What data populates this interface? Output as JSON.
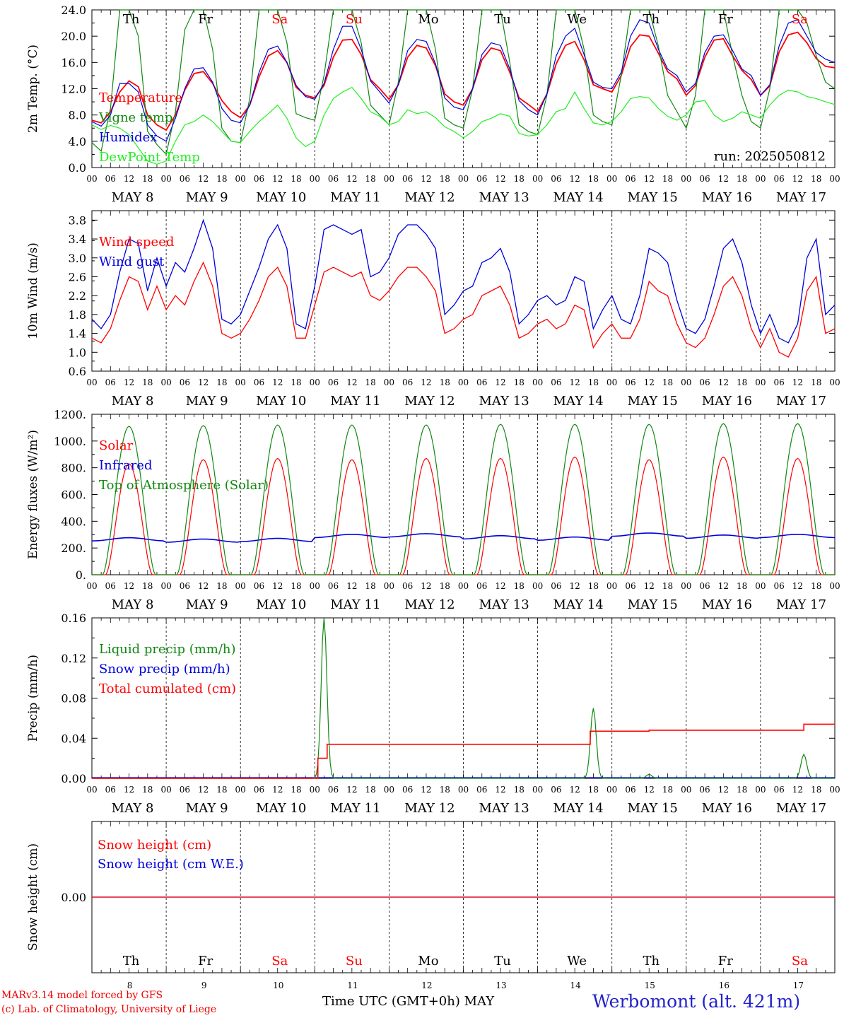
{
  "run_label": "run: 2025050812",
  "days": [
    {
      "abbr": "Th",
      "date": "MAY  8",
      "num": "8",
      "weekend": false
    },
    {
      "abbr": "Fr",
      "date": "MAY  9",
      "num": "9",
      "weekend": false
    },
    {
      "abbr": "Sa",
      "date": "MAY 10",
      "num": "10",
      "weekend": true
    },
    {
      "abbr": "Su",
      "date": "MAY 11",
      "num": "11",
      "weekend": true
    },
    {
      "abbr": "Mo",
      "date": "MAY 12",
      "num": "12",
      "weekend": false
    },
    {
      "abbr": "Tu",
      "date": "MAY 13",
      "num": "13",
      "weekend": false
    },
    {
      "abbr": "We",
      "date": "MAY 14",
      "num": "14",
      "weekend": false
    },
    {
      "abbr": "Th",
      "date": "MAY 15",
      "num": "15",
      "weekend": false
    },
    {
      "abbr": "Fr",
      "date": "MAY 16",
      "num": "16",
      "weekend": false
    },
    {
      "abbr": "Sa",
      "date": "MAY 17",
      "num": "17",
      "weekend": true
    }
  ],
  "hour_ticks": [
    "00",
    "06",
    "12",
    "18"
  ],
  "colors": {
    "red": "#ff0000",
    "green": "#118811",
    "blue": "#0000dd",
    "lightgreen": "#22ee22",
    "weekend": "#ff0000"
  },
  "footer": {
    "credit1": "MARv3.14 model forced by GFS",
    "credit2": "(c) Lab. of Climatology, University of Liege",
    "xtitle": "Time UTC (GMT+0h) MAY",
    "station": "Werbomont (alt. 421m)"
  },
  "chart_data": [
    {
      "type": "line",
      "ylabel": "2m Temp. (°C)",
      "ylim": [
        0,
        24
      ],
      "yticks": [
        "0.0",
        "4.0",
        "8.0",
        "12.0",
        "16.0",
        "20.0",
        "24.0"
      ],
      "x_unit": "hours since MAY 8 00 UTC (3-hourly)",
      "x": [
        0,
        3,
        6,
        9,
        12,
        15,
        18,
        21,
        24,
        27,
        30,
        33,
        36,
        39,
        42,
        45,
        48,
        51,
        54,
        57,
        60,
        63,
        66,
        69,
        72,
        75,
        78,
        81,
        84,
        87,
        90,
        93,
        96,
        99,
        102,
        105,
        108,
        111,
        114,
        117,
        120,
        123,
        126,
        129,
        132,
        135,
        138,
        141,
        144,
        147,
        150,
        153,
        156,
        159,
        162,
        165,
        168,
        171,
        174,
        177,
        180,
        183,
        186,
        189,
        192,
        195,
        198,
        201,
        204,
        207,
        210,
        213,
        216,
        219,
        222,
        225,
        228,
        231,
        234,
        237,
        240
      ],
      "series": [
        {
          "name": "Temperature",
          "color": "red",
          "values": [
            7.2,
            6.8,
            8.5,
            11.5,
            13.2,
            12.3,
            8.0,
            6.5,
            5.7,
            8.0,
            11.8,
            14.3,
            14.6,
            12.8,
            10.2,
            8.5,
            7.6,
            9.5,
            13.8,
            17.0,
            17.8,
            16.0,
            12.2,
            11.0,
            10.6,
            12.5,
            16.8,
            19.4,
            19.5,
            17.2,
            13.4,
            12.0,
            10.4,
            12.6,
            16.8,
            18.6,
            18.2,
            15.5,
            11.2,
            10.0,
            9.5,
            12.0,
            16.4,
            18.2,
            17.8,
            14.5,
            10.6,
            9.6,
            8.5,
            11.2,
            15.8,
            18.6,
            19.2,
            16.4,
            12.6,
            12.0,
            11.5,
            14.0,
            18.4,
            20.2,
            20.0,
            17.4,
            14.6,
            13.5,
            11.0,
            12.5,
            16.8,
            19.4,
            19.6,
            17.0,
            14.8,
            13.4,
            11.0,
            12.4,
            17.6,
            20.2,
            20.6,
            19.0,
            16.6,
            15.4,
            15.2
          ]
        },
        {
          "name": "Vigne temp",
          "color": "green",
          "values": [
            3.8,
            2.5,
            9.0,
            24.0,
            24.0,
            20.0,
            5.5,
            3.5,
            2.0,
            8.5,
            21.0,
            24.0,
            24.0,
            18.0,
            6.0,
            4.0,
            3.8,
            10.5,
            24.0,
            24.0,
            24.0,
            19.0,
            8.2,
            7.6,
            7.2,
            14.0,
            24.0,
            24.0,
            24.0,
            19.0,
            9.5,
            8.0,
            6.5,
            13.0,
            24.0,
            24.0,
            24.0,
            18.0,
            7.5,
            6.5,
            6.0,
            12.0,
            24.0,
            24.0,
            24.0,
            16.0,
            6.5,
            5.5,
            5.0,
            11.0,
            24.0,
            24.0,
            24.0,
            18.0,
            8.0,
            7.0,
            6.5,
            14.0,
            24.0,
            24.0,
            24.0,
            18.5,
            11.0,
            8.5,
            6.0,
            11.0,
            24.0,
            24.0,
            24.0,
            17.0,
            11.0,
            7.0,
            6.0,
            12.0,
            24.0,
            24.0,
            24.0,
            22.0,
            17.0,
            13.0,
            12.0
          ]
        },
        {
          "name": "Humidex",
          "color": "blue",
          "values": [
            7.0,
            6.3,
            8.0,
            12.8,
            12.8,
            11.5,
            6.5,
            4.8,
            4.0,
            7.5,
            12.0,
            15.0,
            15.2,
            13.0,
            9.0,
            7.2,
            6.8,
            9.5,
            14.5,
            18.0,
            18.5,
            16.0,
            12.5,
            10.8,
            10.4,
            12.8,
            18.0,
            21.5,
            21.5,
            18.0,
            13.2,
            11.5,
            9.8,
            12.6,
            17.8,
            19.5,
            19.2,
            15.8,
            10.6,
            9.2,
            8.8,
            12.0,
            17.2,
            19.0,
            18.6,
            15.0,
            10.2,
            8.8,
            8.0,
            11.2,
            17.0,
            20.0,
            21.2,
            17.2,
            13.0,
            12.2,
            12.0,
            14.5,
            20.0,
            22.5,
            22.0,
            18.0,
            15.0,
            14.0,
            11.5,
            12.8,
            17.5,
            20.0,
            20.2,
            17.8,
            15.0,
            14.0,
            11.0,
            12.6,
            18.5,
            22.0,
            22.5,
            20.0,
            17.5,
            16.5,
            16.0
          ]
        },
        {
          "name": "DewPoint Temp",
          "color": "lightgreen",
          "values": [
            6.5,
            5.8,
            6.4,
            6.0,
            5.0,
            3.0,
            1.0,
            0.5,
            1.0,
            4.0,
            6.5,
            7.0,
            8.0,
            7.0,
            5.5,
            4.0,
            3.8,
            5.5,
            7.0,
            8.2,
            9.5,
            7.5,
            4.5,
            3.2,
            4.0,
            8.0,
            10.5,
            11.5,
            12.2,
            10.5,
            8.5,
            7.8,
            6.5,
            7.0,
            8.8,
            8.2,
            8.5,
            7.6,
            6.2,
            5.5,
            4.5,
            5.5,
            7.0,
            7.5,
            8.2,
            7.8,
            5.2,
            4.8,
            5.0,
            6.5,
            8.5,
            9.0,
            11.5,
            9.0,
            6.8,
            6.5,
            7.0,
            8.5,
            10.5,
            10.8,
            10.6,
            9.0,
            7.8,
            7.2,
            8.0,
            10.0,
            10.2,
            8.0,
            7.0,
            7.5,
            8.5,
            8.0,
            7.5,
            9.5,
            11.0,
            11.8,
            11.5,
            10.8,
            10.5,
            10.0,
            9.6
          ]
        }
      ]
    },
    {
      "type": "line",
      "ylabel": "10m Wind (m/s)",
      "ylim": [
        0.6,
        4.0
      ],
      "yticks": [
        "0.6",
        "1.0",
        "1.4",
        "1.8",
        "2.2",
        "2.6",
        "3.0",
        "3.4",
        "3.8"
      ],
      "x_unit": "hours since MAY 8 00 UTC (3-hourly)",
      "x": [
        0,
        3,
        6,
        9,
        12,
        15,
        18,
        21,
        24,
        27,
        30,
        33,
        36,
        39,
        42,
        45,
        48,
        51,
        54,
        57,
        60,
        63,
        66,
        69,
        72,
        75,
        78,
        81,
        84,
        87,
        90,
        93,
        96,
        99,
        102,
        105,
        108,
        111,
        114,
        117,
        120,
        123,
        126,
        129,
        132,
        135,
        138,
        141,
        144,
        147,
        150,
        153,
        156,
        159,
        162,
        165,
        168,
        171,
        174,
        177,
        180,
        183,
        186,
        189,
        192,
        195,
        198,
        201,
        204,
        207,
        210,
        213,
        216,
        219,
        222,
        225,
        228,
        231,
        234,
        237,
        240
      ],
      "series": [
        {
          "name": "Wind speed",
          "color": "red",
          "values": [
            1.3,
            1.2,
            1.5,
            2.1,
            2.6,
            2.5,
            1.9,
            2.4,
            1.9,
            2.2,
            2.0,
            2.5,
            2.9,
            2.4,
            1.4,
            1.3,
            1.4,
            1.7,
            2.1,
            2.6,
            2.8,
            2.4,
            1.3,
            1.3,
            2.0,
            2.7,
            2.8,
            2.7,
            2.6,
            2.7,
            2.2,
            2.1,
            2.3,
            2.6,
            2.8,
            2.8,
            2.6,
            2.3,
            1.4,
            1.5,
            1.7,
            1.8,
            2.2,
            2.3,
            2.4,
            2.0,
            1.3,
            1.4,
            1.6,
            1.7,
            1.5,
            1.6,
            2.0,
            1.9,
            1.1,
            1.4,
            1.6,
            1.3,
            1.3,
            1.7,
            2.5,
            2.3,
            2.2,
            1.6,
            1.2,
            1.1,
            1.3,
            1.8,
            2.4,
            2.6,
            2.2,
            1.5,
            1.1,
            1.5,
            1.0,
            0.9,
            1.3,
            2.3,
            2.6,
            1.4,
            1.5
          ]
        },
        {
          "name": "Wind gust",
          "color": "blue",
          "values": [
            1.7,
            1.5,
            1.8,
            2.7,
            3.4,
            3.3,
            2.3,
            3.0,
            2.4,
            2.9,
            2.7,
            3.2,
            3.8,
            3.2,
            1.7,
            1.6,
            1.8,
            2.3,
            2.8,
            3.4,
            3.7,
            3.2,
            1.6,
            1.5,
            2.4,
            3.6,
            3.7,
            3.6,
            3.5,
            3.6,
            2.6,
            2.7,
            3.0,
            3.5,
            3.7,
            3.7,
            3.5,
            3.2,
            1.8,
            2.0,
            2.3,
            2.4,
            2.9,
            3.0,
            3.2,
            2.7,
            1.6,
            1.8,
            2.1,
            2.2,
            2.0,
            2.1,
            2.6,
            2.5,
            1.5,
            1.9,
            2.2,
            1.7,
            1.6,
            2.2,
            3.2,
            3.1,
            2.9,
            2.1,
            1.5,
            1.4,
            1.7,
            2.4,
            3.2,
            3.4,
            2.9,
            2.0,
            1.4,
            1.8,
            1.3,
            1.2,
            1.6,
            3.0,
            3.4,
            1.8,
            2.0
          ]
        }
      ]
    },
    {
      "type": "line",
      "ylabel": "Energy fluxes (W/m²)",
      "ylim": [
        0,
        1200
      ],
      "yticks": [
        "0.",
        "200.",
        "400.",
        "600.",
        "800.",
        "1000.",
        "1200."
      ],
      "x_unit": "hours since MAY 8 00 UTC (daily cycle)",
      "series": [
        {
          "name": "Solar",
          "color": "red",
          "daily_peak": [
            830,
            860,
            870,
            860,
            870,
            870,
            880,
            860,
            880,
            870
          ],
          "sunrise_h": 4.5,
          "sunset_h": 19.5
        },
        {
          "name": "Infrared",
          "color": "blue",
          "baseline": [
            265,
            255,
            260,
            290,
            295,
            280,
            270,
            300,
            285,
            290
          ],
          "note": "near-constant ~250-310"
        },
        {
          "name": "Top of Atmosphere (Solar)",
          "color": "green",
          "daily_peak": [
            1110,
            1115,
            1120,
            1120,
            1120,
            1125,
            1125,
            1125,
            1130,
            1130
          ],
          "sunrise_h": 3.5,
          "sunset_h": 20.5
        }
      ]
    },
    {
      "type": "line",
      "ylabel": "Precip (mm/h)",
      "ylim": [
        0,
        0.16
      ],
      "yticks": [
        "0.00",
        "0.04",
        "0.08",
        "0.12",
        "0.16"
      ],
      "series": [
        {
          "name": "Liquid precip (mm/h)",
          "color": "green",
          "events": [
            {
              "hour": 75,
              "peak": 0.16
            },
            {
              "hour": 162,
              "peak": 0.07
            },
            {
              "hour": 180,
              "peak": 0.004
            },
            {
              "hour": 230,
              "peak": 0.024
            }
          ]
        },
        {
          "name": "Snow precip (mm/h)",
          "color": "blue",
          "values_all": 0.0
        },
        {
          "name": "Total cumulated (cm)",
          "color": "red",
          "steps": [
            {
              "from": 0,
              "value": 0.0
            },
            {
              "from": 73,
              "value": 0.02
            },
            {
              "from": 76,
              "value": 0.034
            },
            {
              "from": 159,
              "value": 0.034
            },
            {
              "from": 161,
              "value": 0.047
            },
            {
              "from": 180,
              "value": 0.048
            },
            {
              "from": 230,
              "value": 0.054
            }
          ]
        }
      ]
    },
    {
      "type": "line",
      "ylabel": "Snow height (cm)",
      "yticks": [
        "0.00"
      ],
      "series": [
        {
          "name": "Snow height (cm)",
          "color": "red",
          "value": 0.0
        },
        {
          "name": "Snow height (cm W.E.)",
          "color": "blue",
          "value": 0.0
        }
      ]
    }
  ]
}
